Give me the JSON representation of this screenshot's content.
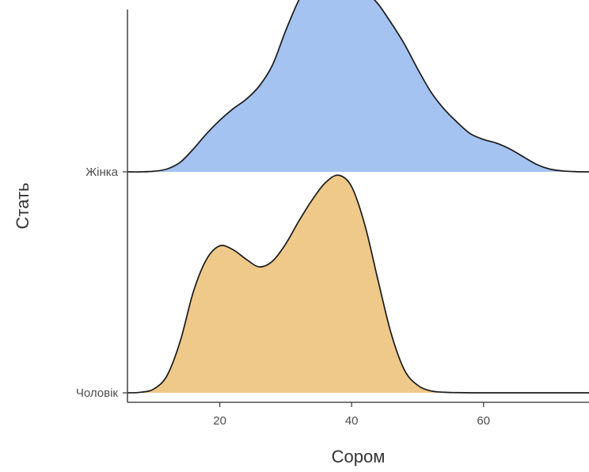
{
  "chart_data": {
    "type": "area",
    "subtype": "ridgeline-density",
    "xlabel": "Сором",
    "ylabel": "Стать",
    "xlim": [
      6,
      76
    ],
    "x_ticks": [
      20,
      40,
      60
    ],
    "categories": [
      "Чоловік",
      "Жінка"
    ],
    "grid": false,
    "legend": "none",
    "series": [
      {
        "category": "Чоловік",
        "color": "#efc98a",
        "x": [
          6,
          8,
          10,
          12,
          14,
          16,
          18,
          20,
          22,
          24,
          26,
          28,
          30,
          32,
          34,
          36,
          38,
          40,
          42,
          44,
          46,
          48,
          50,
          52,
          54,
          56,
          58,
          60,
          65,
          70,
          76
        ],
        "density": [
          0.0,
          0.003,
          0.02,
          0.09,
          0.27,
          0.53,
          0.7,
          0.77,
          0.75,
          0.7,
          0.66,
          0.69,
          0.78,
          0.9,
          1.01,
          1.1,
          1.14,
          1.08,
          0.88,
          0.59,
          0.31,
          0.12,
          0.04,
          0.01,
          0.003,
          0.001,
          0.0,
          0.0,
          0.0,
          0.0,
          0.0
        ]
      },
      {
        "category": "Жінка",
        "color": "#a4c3f0",
        "x": [
          6,
          8,
          10,
          12,
          14,
          16,
          18,
          20,
          22,
          24,
          26,
          28,
          30,
          32,
          34,
          36,
          38,
          40,
          42,
          44,
          46,
          48,
          50,
          52,
          54,
          56,
          58,
          60,
          62,
          64,
          66,
          68,
          70,
          72,
          74,
          76
        ],
        "density": [
          0.0,
          0.0,
          0.003,
          0.015,
          0.05,
          0.12,
          0.2,
          0.27,
          0.33,
          0.38,
          0.45,
          0.56,
          0.74,
          0.9,
          1.01,
          1.05,
          1.05,
          1.01,
          0.95,
          0.88,
          0.78,
          0.67,
          0.54,
          0.42,
          0.33,
          0.26,
          0.2,
          0.17,
          0.15,
          0.12,
          0.08,
          0.04,
          0.015,
          0.005,
          0.001,
          0.0
        ]
      }
    ]
  }
}
